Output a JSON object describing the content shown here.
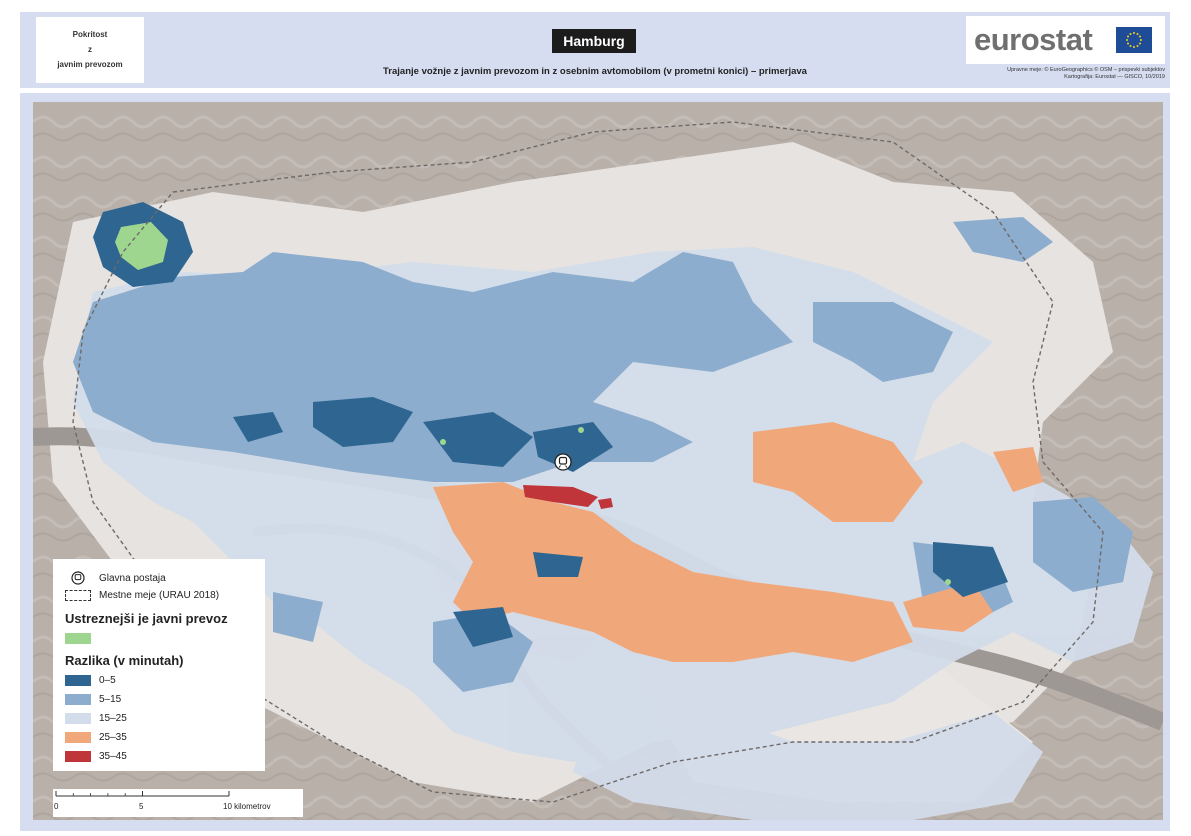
{
  "header": {
    "topic_lines": [
      "Pokritost",
      "z",
      "javnim prevozom"
    ],
    "city": "Hamburg",
    "subtitle": "Trajanje vožnje z javnim prevozom in z osebnim avtomobilom (v prometni konici) – primerjava",
    "logo": "eurostat",
    "credits": [
      "Upravne meje: © EuroGeographics © OSM – prispevki subjektov",
      "Kartografija: Eurostat — GISCO, 10/2019"
    ]
  },
  "colors": {
    "frame": "#d6ddf0",
    "basemap": "#bab1ab",
    "urban": "#e5e3e1",
    "river": "#9b9592",
    "better_pt": "#9ed68f",
    "class_0_5": "#2e6591",
    "class_5_15": "#8cadcd",
    "class_15_25": "#d3dcea",
    "class_25_35": "#f0a87b",
    "class_35_45": "#c0353a"
  },
  "legend": {
    "station_icon": "train-station-icon",
    "station_label": "Glavna postaja",
    "boundary_label": "Mestne meje (URAU 2018)",
    "better_pt_heading": "Ustreznejši je javni prevoz",
    "diff_heading": "Razlika (v minutah)",
    "classes": [
      {
        "label": "0–5",
        "color": "#2e6591"
      },
      {
        "label": "5–15",
        "color": "#8cadcd"
      },
      {
        "label": "15–25",
        "color": "#d3dcea"
      },
      {
        "label": "25–35",
        "color": "#f0a87b"
      },
      {
        "label": "35–45",
        "color": "#c0353a"
      }
    ]
  },
  "scale": {
    "ticks": [
      "0",
      "5",
      "10 kilometrov"
    ]
  }
}
